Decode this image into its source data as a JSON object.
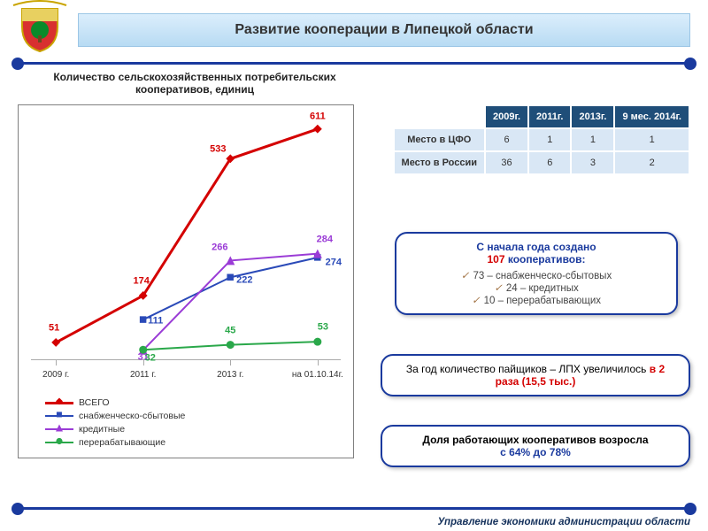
{
  "header": {
    "title": "Развитие кооперации в Липецкой области"
  },
  "subtitle": "Количество сельскохозяйственных потребительских кооперативов, единиц",
  "chart": {
    "type": "line",
    "x_labels": [
      "2009 г.",
      "2011 г.",
      "2013 г.",
      "на 01.10.14г."
    ],
    "x_positions_pct": [
      8,
      36,
      64,
      92
    ],
    "y_min": 0,
    "y_max": 650,
    "series": [
      {
        "name": "ВСЕГО",
        "color": "#d40000",
        "marker": "diamond",
        "width": 3,
        "values": [
          51,
          174,
          533,
          611
        ],
        "label_offsets": [
          [
            -2,
            -8
          ],
          [
            -2,
            -8
          ],
          [
            -14,
            -2
          ],
          [
            0,
            -6
          ]
        ]
      },
      {
        "name": "снабженческо-сбытовые",
        "color": "#2a4ab8",
        "marker": "square",
        "width": 2,
        "values": [
          null,
          111,
          222,
          274
        ],
        "label_offsets": [
          null,
          [
            14,
            10
          ],
          [
            16,
            12
          ],
          [
            18,
            14
          ]
        ]
      },
      {
        "name": "кредитные",
        "color": "#9a3bd6",
        "marker": "triangle",
        "width": 2,
        "values": [
          null,
          31,
          266,
          284
        ],
        "label_offsets": [
          null,
          [
            0,
            16
          ],
          [
            -12,
            -6
          ],
          [
            8,
            -8
          ]
        ]
      },
      {
        "name": "перерабатывающие",
        "color": "#2aa84a",
        "marker": "circle",
        "width": 2,
        "values": [
          null,
          32,
          45,
          53
        ],
        "label_offsets": [
          null,
          [
            8,
            18
          ],
          [
            0,
            -8
          ],
          [
            6,
            -8
          ]
        ]
      }
    ],
    "label_fontsize": 11
  },
  "table": {
    "header": [
      "",
      "2009г.",
      "2011г.",
      "2013г.",
      "9 мес. 2014г."
    ],
    "rows": [
      {
        "label": "Место в ЦФО",
        "cells": [
          "6",
          "1",
          "1",
          "1"
        ]
      },
      {
        "label": "Место в России",
        "cells": [
          "36",
          "6",
          "3",
          "2"
        ]
      }
    ]
  },
  "callouts": {
    "c1": {
      "line1_a": "С начала года создано",
      "line1_hl": "107",
      "line1_hl_color": "#d40000",
      "line1_b": " кооперативов:",
      "items": [
        "73 – снабженческо-сбытовых",
        "24 – кредитных",
        "10 – перерабатывающих"
      ]
    },
    "c2": {
      "pre": "За год количество пайщиков – ЛПХ  увеличилось ",
      "hl": "в 2 раза (15,5 тыс.)",
      "hl_color": "#d40000"
    },
    "c3": {
      "pre": "Доля работающих кооперативов возросла ",
      "hl": "с 64% до 78%",
      "hl_color": "#1a3a9e"
    }
  },
  "footer": "Управление экономики администрации области",
  "emblem": {
    "shield_stroke": "#c9a400",
    "shield_fill_top": "#e8d060",
    "shield_fill_bot": "#d83030",
    "tree_fill": "#0a8a2a"
  }
}
